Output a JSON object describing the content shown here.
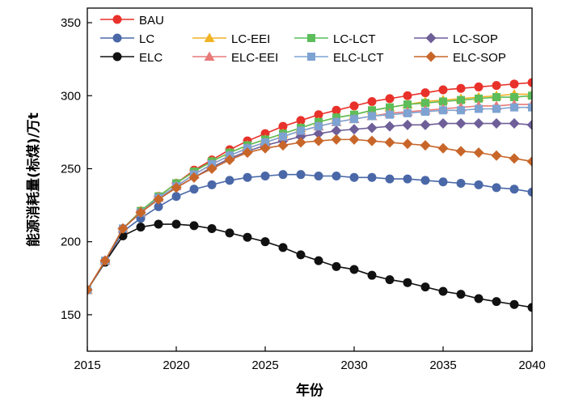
{
  "chart_data": {
    "type": "line",
    "title": "",
    "xlabel": "年份",
    "ylabel": "能源消耗量(标煤)/万t",
    "xlim": [
      2015,
      2040
    ],
    "ylim": [
      125,
      360
    ],
    "x_ticks": [
      2015,
      2020,
      2025,
      2030,
      2035,
      2040
    ],
    "y_ticks": [
      150,
      200,
      250,
      300,
      350
    ],
    "grid": false,
    "legend_position": "top",
    "x": [
      2015,
      2016,
      2017,
      2018,
      2019,
      2020,
      2021,
      2022,
      2023,
      2024,
      2025,
      2026,
      2027,
      2028,
      2029,
      2030,
      2031,
      2032,
      2033,
      2034,
      2035,
      2036,
      2037,
      2038,
      2039,
      2040
    ],
    "series": [
      {
        "name": "BAU",
        "color": "#e8312a",
        "marker": "circle",
        "values": [
          167,
          187,
          209,
          221,
          231,
          240,
          249,
          256,
          263,
          269,
          274,
          279,
          283,
          287,
          290,
          293,
          296,
          298,
          300,
          302,
          304,
          305,
          306,
          307,
          308,
          309
        ]
      },
      {
        "name": "LC",
        "color": "#4a68a8",
        "marker": "circle",
        "values": [
          167,
          186,
          207,
          216,
          224,
          231,
          236,
          239,
          242,
          244,
          245,
          246,
          246,
          245,
          245,
          244,
          244,
          243,
          243,
          242,
          241,
          240,
          239,
          237,
          236,
          234
        ]
      },
      {
        "name": "LC-EEI",
        "color": "#f0b323",
        "marker": "triangle",
        "values": [
          167,
          187,
          209,
          221,
          231,
          240,
          248,
          255,
          261,
          266,
          270,
          274,
          278,
          282,
          285,
          287,
          290,
          292,
          294,
          296,
          297,
          298,
          299,
          300,
          301,
          301
        ]
      },
      {
        "name": "LC-LCT",
        "color": "#5cbd5a",
        "marker": "square",
        "values": [
          167,
          187,
          209,
          221,
          231,
          240,
          248,
          255,
          261,
          266,
          270,
          274,
          278,
          282,
          285,
          287,
          290,
          292,
          294,
          295,
          296,
          297,
          298,
          299,
          299,
          300
        ]
      },
      {
        "name": "LC-SOP",
        "color": "#6e5f98",
        "marker": "diamond",
        "values": [
          167,
          187,
          209,
          220,
          229,
          237,
          244,
          251,
          257,
          262,
          266,
          269,
          272,
          274,
          276,
          277,
          278,
          279,
          280,
          280,
          281,
          281,
          281,
          281,
          281,
          280
        ]
      },
      {
        "name": "ELC",
        "color": "#111111",
        "marker": "circle",
        "values": [
          167,
          186,
          204,
          210,
          212,
          212,
          211,
          209,
          206,
          203,
          200,
          196,
          191,
          187,
          183,
          181,
          177,
          174,
          172,
          169,
          166,
          164,
          161,
          159,
          157,
          155
        ]
      },
      {
        "name": "ELC-EEI",
        "color": "#e87a7a",
        "marker": "triangle",
        "values": [
          167,
          187,
          209,
          220,
          230,
          238,
          246,
          253,
          259,
          264,
          268,
          272,
          276,
          279,
          282,
          284,
          286,
          288,
          289,
          290,
          291,
          292,
          293,
          293,
          294,
          294
        ]
      },
      {
        "name": "ELC-LCT",
        "color": "#7ea3d2",
        "marker": "square",
        "values": [
          167,
          187,
          209,
          220,
          230,
          238,
          246,
          253,
          259,
          264,
          268,
          272,
          276,
          279,
          282,
          284,
          286,
          287,
          288,
          289,
          290,
          290,
          291,
          291,
          292,
          292
        ]
      },
      {
        "name": "ELC-SOP",
        "color": "#c8662a",
        "marker": "diamond",
        "values": [
          167,
          187,
          209,
          220,
          229,
          237,
          244,
          250,
          256,
          261,
          264,
          266,
          268,
          269,
          270,
          270,
          269,
          268,
          267,
          266,
          264,
          262,
          261,
          259,
          257,
          255
        ]
      }
    ]
  }
}
